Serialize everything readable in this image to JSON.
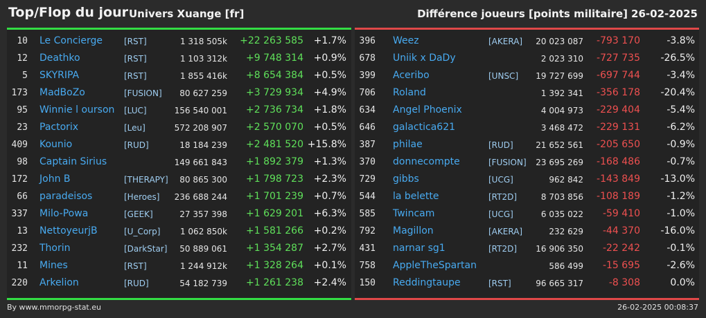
{
  "header": {
    "title": "Top/Flop du jour",
    "universe": "Univers Xuange [fr]",
    "metric": "Différence joueurs [points militaire]",
    "date": "26-02-2025"
  },
  "colors": {
    "positive": "#5fe05a",
    "negative": "#ee5050",
    "top_border": "#33dd44",
    "flop_border": "#e04848",
    "name": "#48aaf0"
  },
  "top": [
    {
      "rank": "10",
      "name": "Le Concierge",
      "alliance": "[RST]",
      "points": "1 318 505k",
      "diff": "+22 263 585",
      "pct": "+1.7%"
    },
    {
      "rank": "12",
      "name": "Deathko",
      "alliance": "[RST]",
      "points": "1 103 312k",
      "diff": "+9 748 314",
      "pct": "+0.9%"
    },
    {
      "rank": "5",
      "name": "SKYRIPA",
      "alliance": "[RST]",
      "points": "1 855 416k",
      "diff": "+8 654 384",
      "pct": "+0.5%"
    },
    {
      "rank": "173",
      "name": "MadBoZo",
      "alliance": "[FUSION]",
      "points": "80 627 259",
      "diff": "+3 729 934",
      "pct": "+4.9%"
    },
    {
      "rank": "95",
      "name": "Winnie l ourson",
      "alliance": "[LUC]",
      "points": "156 540 001",
      "diff": "+2 736 734",
      "pct": "+1.8%"
    },
    {
      "rank": "23",
      "name": "Pactorix",
      "alliance": "[Leu]",
      "points": "572 208 907",
      "diff": "+2 570 070",
      "pct": "+0.5%"
    },
    {
      "rank": "409",
      "name": "Kounio",
      "alliance": "[RUD]",
      "points": "18 184 239",
      "diff": "+2 481 520",
      "pct": "+15.8%"
    },
    {
      "rank": "98",
      "name": "Captain Sirius",
      "alliance": "",
      "points": "149 661 843",
      "diff": "+1 892 379",
      "pct": "+1.3%"
    },
    {
      "rank": "172",
      "name": "John B",
      "alliance": "[THERAPY]",
      "points": "80 865 300",
      "diff": "+1 798 723",
      "pct": "+2.3%"
    },
    {
      "rank": "66",
      "name": "paradeisos",
      "alliance": "[Heroes]",
      "points": "236 688 244",
      "diff": "+1 701 239",
      "pct": "+0.7%"
    },
    {
      "rank": "337",
      "name": "Milo-Powa",
      "alliance": "[GEEK]",
      "points": "27 357 398",
      "diff": "+1 629 201",
      "pct": "+6.3%"
    },
    {
      "rank": "13",
      "name": "NettoyeurjB",
      "alliance": "[U_Corp]",
      "points": "1 062 850k",
      "diff": "+1 581 266",
      "pct": "+0.2%"
    },
    {
      "rank": "232",
      "name": "Thorin",
      "alliance": "[DarkStar]",
      "points": "50 889 061",
      "diff": "+1 354 287",
      "pct": "+2.7%"
    },
    {
      "rank": "11",
      "name": "Mines",
      "alliance": "[RST]",
      "points": "1 244 912k",
      "diff": "+1 328 264",
      "pct": "+0.1%"
    },
    {
      "rank": "220",
      "name": "Arkelion",
      "alliance": "[RUD]",
      "points": "54 182 739",
      "diff": "+1 261 238",
      "pct": "+2.4%"
    }
  ],
  "flop": [
    {
      "rank": "396",
      "name": "Weez",
      "alliance": "[AKERA]",
      "points": "20 023 087",
      "diff": "-793 170",
      "pct": "-3.8%"
    },
    {
      "rank": "678",
      "name": "Uniik x DaDy",
      "alliance": "",
      "points": "2 023 310",
      "diff": "-727 735",
      "pct": "-26.5%"
    },
    {
      "rank": "399",
      "name": "Aceribo",
      "alliance": "[UNSC]",
      "points": "19 727 699",
      "diff": "-697 744",
      "pct": "-3.4%"
    },
    {
      "rank": "706",
      "name": "Roland",
      "alliance": "",
      "points": "1 392 341",
      "diff": "-356 178",
      "pct": "-20.4%"
    },
    {
      "rank": "634",
      "name": "Angel Phoenix",
      "alliance": "",
      "points": "4 004 973",
      "diff": "-229 404",
      "pct": "-5.4%"
    },
    {
      "rank": "646",
      "name": "galactica621",
      "alliance": "",
      "points": "3 468 472",
      "diff": "-229 131",
      "pct": "-6.2%"
    },
    {
      "rank": "387",
      "name": "philae",
      "alliance": "[RUD]",
      "points": "21 652 561",
      "diff": "-205 650",
      "pct": "-0.9%"
    },
    {
      "rank": "370",
      "name": "donnecompte",
      "alliance": "[FUSION]",
      "points": "23 695 269",
      "diff": "-168 486",
      "pct": "-0.7%"
    },
    {
      "rank": "729",
      "name": "gibbs",
      "alliance": "[UCG]",
      "points": "962 842",
      "diff": "-143 849",
      "pct": "-13.0%"
    },
    {
      "rank": "544",
      "name": "la belette",
      "alliance": "[RT2D]",
      "points": "8 703 856",
      "diff": "-108 189",
      "pct": "-1.2%"
    },
    {
      "rank": "585",
      "name": "Twincam",
      "alliance": "[UCG]",
      "points": "6 035 022",
      "diff": "-59 410",
      "pct": "-1.0%"
    },
    {
      "rank": "792",
      "name": "Magillon",
      "alliance": "[AKERA]",
      "points": "232 629",
      "diff": "-44 370",
      "pct": "-16.0%"
    },
    {
      "rank": "431",
      "name": "narnar sg1",
      "alliance": "[RT2D]",
      "points": "16 906 350",
      "diff": "-22 242",
      "pct": "-0.1%"
    },
    {
      "rank": "758",
      "name": "AppleTheSpartan",
      "alliance": "",
      "points": "586 499",
      "diff": "-15 695",
      "pct": "-2.6%"
    },
    {
      "rank": "150",
      "name": "Reddingtaupe",
      "alliance": "[RST]",
      "points": "96 665 317",
      "diff": "-8 308",
      "pct": "0.0%"
    }
  ],
  "footer": {
    "source": "By www.mmorpg-stat.eu",
    "timestamp": "26-02-2025 00:08:37"
  }
}
